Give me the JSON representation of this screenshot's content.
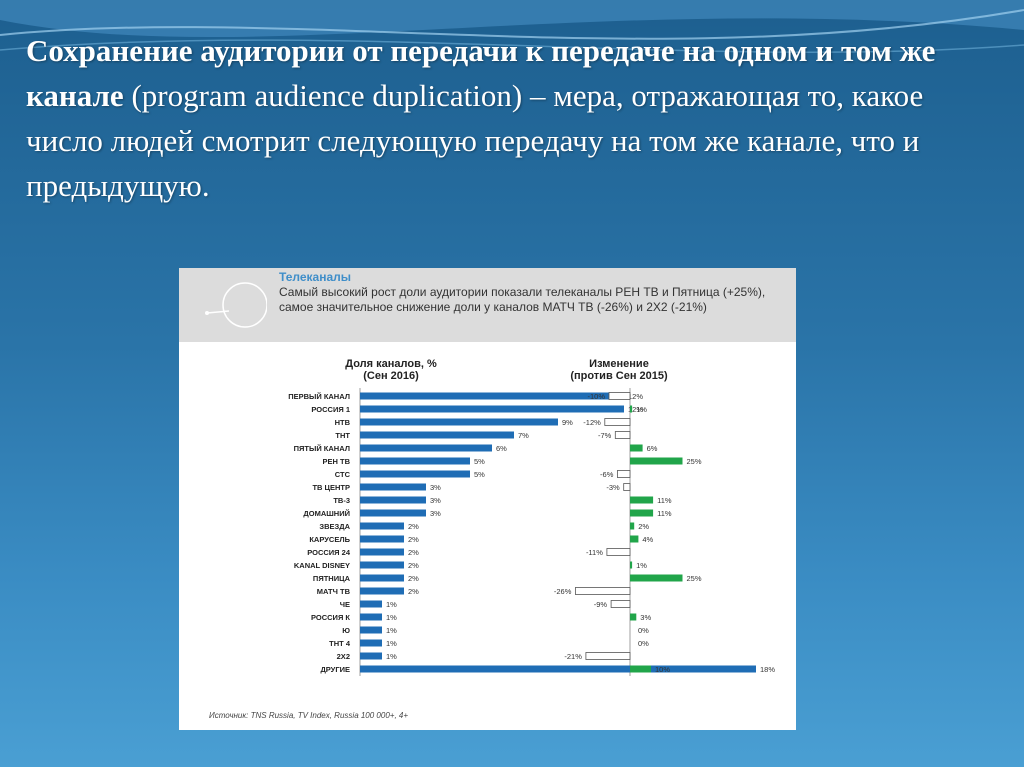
{
  "slide": {
    "title_bold": "Сохранение аудитории от передачи к передаче на одном и том же канале",
    "title_rest": " (program audience duplication) – мера, отражающая то, какое число людей смотрит следующую передачу на том же канале, что и предыдущую."
  },
  "panel": {
    "title": "Телеканалы",
    "description": "Самый высокий рост доли аудитории показали телеканалы РЕН ТВ и Пятница (+25%), самое значительное снижение доли у каналов МАТЧ ТВ (-26%) и 2Х2 (-21%)",
    "source": "Источник: TNS Russia, TV Index, Russia 100 000+, 4+"
  },
  "colors": {
    "share_bar": "#1f6db5",
    "change_positive": "#21a54a",
    "change_negative_fill": "#ffffff",
    "change_negative_stroke": "#555555"
  },
  "chart_data": [
    {
      "type": "bar",
      "title": "Доля каналов, % (Сен 2016)",
      "title_lines": [
        "Доля каналов, %",
        "(Сен 2016)"
      ],
      "categories": [
        "ПЕРВЫЙ КАНАЛ",
        "РОССИЯ 1",
        "НТВ",
        "ТНТ",
        "ПЯТЫЙ КАНАЛ",
        "РЕН ТВ",
        "СТС",
        "ТВ ЦЕНТР",
        "ТВ-3",
        "ДОМАШНИЙ",
        "ЗВЕЗДА",
        "КАРУСЕЛЬ",
        "РОССИЯ 24",
        "KANAL DISNEY",
        "ПЯТНИЦА",
        "МАТЧ ТВ",
        "ЧЕ",
        "РОССИЯ К",
        "Ю",
        "ТНТ 4",
        "2Х2",
        "ДРУГИЕ"
      ],
      "values": [
        12,
        12,
        9,
        7,
        6,
        5,
        5,
        3,
        3,
        3,
        2,
        2,
        2,
        2,
        2,
        2,
        1,
        1,
        1,
        1,
        1,
        18
      ],
      "labels": [
        "12%",
        "12%",
        "9%",
        "7%",
        "6%",
        "5%",
        "5%",
        "3%",
        "3%",
        "3%",
        "2%",
        "2%",
        "2%",
        "2%",
        "2%",
        "2%",
        "1%",
        "1%",
        "1%",
        "1%",
        "1%",
        "18%"
      ],
      "orientation": "horizontal"
    },
    {
      "type": "bar",
      "title": "Изменение (против Сен 2015)",
      "title_lines": [
        "Изменение",
        "(против Сен 2015)"
      ],
      "categories": [
        "ПЕРВЫЙ КАНАЛ",
        "РОССИЯ 1",
        "НТВ",
        "ТНТ",
        "ПЯТЫЙ КАНАЛ",
        "РЕН ТВ",
        "СТС",
        "ТВ ЦЕНТР",
        "ТВ-3",
        "ДОМАШНИЙ",
        "ЗВЕЗДА",
        "КАРУСЕЛЬ",
        "РОССИЯ 24",
        "KANAL DISNEY",
        "ПЯТНИЦА",
        "МАТЧ ТВ",
        "ЧЕ",
        "РОССИЯ К",
        "Ю",
        "ТНТ 4",
        "2Х2",
        "ДРУГИЕ"
      ],
      "values": [
        -10,
        1,
        -12,
        -7,
        6,
        25,
        -6,
        -3,
        11,
        11,
        2,
        4,
        -11,
        1,
        25,
        -26,
        -9,
        3,
        0,
        0,
        -21,
        10
      ],
      "labels": [
        "-10%",
        "1%",
        "-12%",
        "-7%",
        "6%",
        "25%",
        "-6%",
        "-3%",
        "11%",
        "11%",
        "2%",
        "4%",
        "-11%",
        "1%",
        "25%",
        "-26%",
        "-9%",
        "3%",
        "0%",
        "0%",
        "-21%",
        "10%"
      ],
      "orientation": "horizontal"
    }
  ]
}
